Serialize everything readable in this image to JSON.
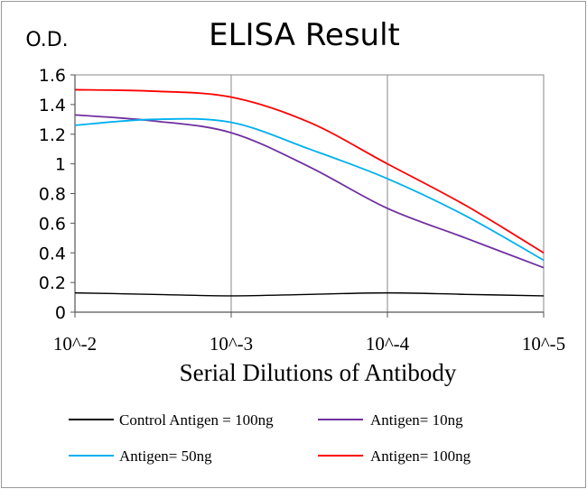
{
  "chart_data": {
    "type": "line",
    "title": "ELISA Result",
    "ylabel": "O.D.",
    "xlabel": "Serial  Dilutions  of Antibody",
    "x_ticks": [
      "10^-2",
      "10^-3",
      "10^-4",
      "10^-5"
    ],
    "x": [
      -2,
      -2.5,
      -3,
      -3.5,
      -4,
      -4.5,
      -5
    ],
    "xlim": [
      -2,
      -5
    ],
    "ylim": [
      0,
      1.6
    ],
    "y_ticks": [
      "0",
      "0.2",
      "0.4",
      "0.6",
      "0.8",
      "1",
      "1.2",
      "1.4",
      "1.6"
    ],
    "grid": "vertical major gridlines",
    "legend_position": "bottom",
    "series": [
      {
        "name": "Control Antigen = 100ng",
        "color": "#000000",
        "values": [
          0.13,
          0.12,
          0.11,
          0.12,
          0.13,
          0.12,
          0.11
        ]
      },
      {
        "name": "Antigen= 10ng",
        "color": "#7030a0",
        "values": [
          1.33,
          1.29,
          1.21,
          0.98,
          0.7,
          0.5,
          0.3
        ]
      },
      {
        "name": "Antigen= 50ng",
        "color": "#00b0f0",
        "values": [
          1.26,
          1.3,
          1.28,
          1.1,
          0.9,
          0.65,
          0.35
        ]
      },
      {
        "name": "Antigen= 100ng",
        "color": "#ff0000",
        "values": [
          1.5,
          1.49,
          1.45,
          1.28,
          1.0,
          0.72,
          0.4
        ]
      }
    ]
  }
}
